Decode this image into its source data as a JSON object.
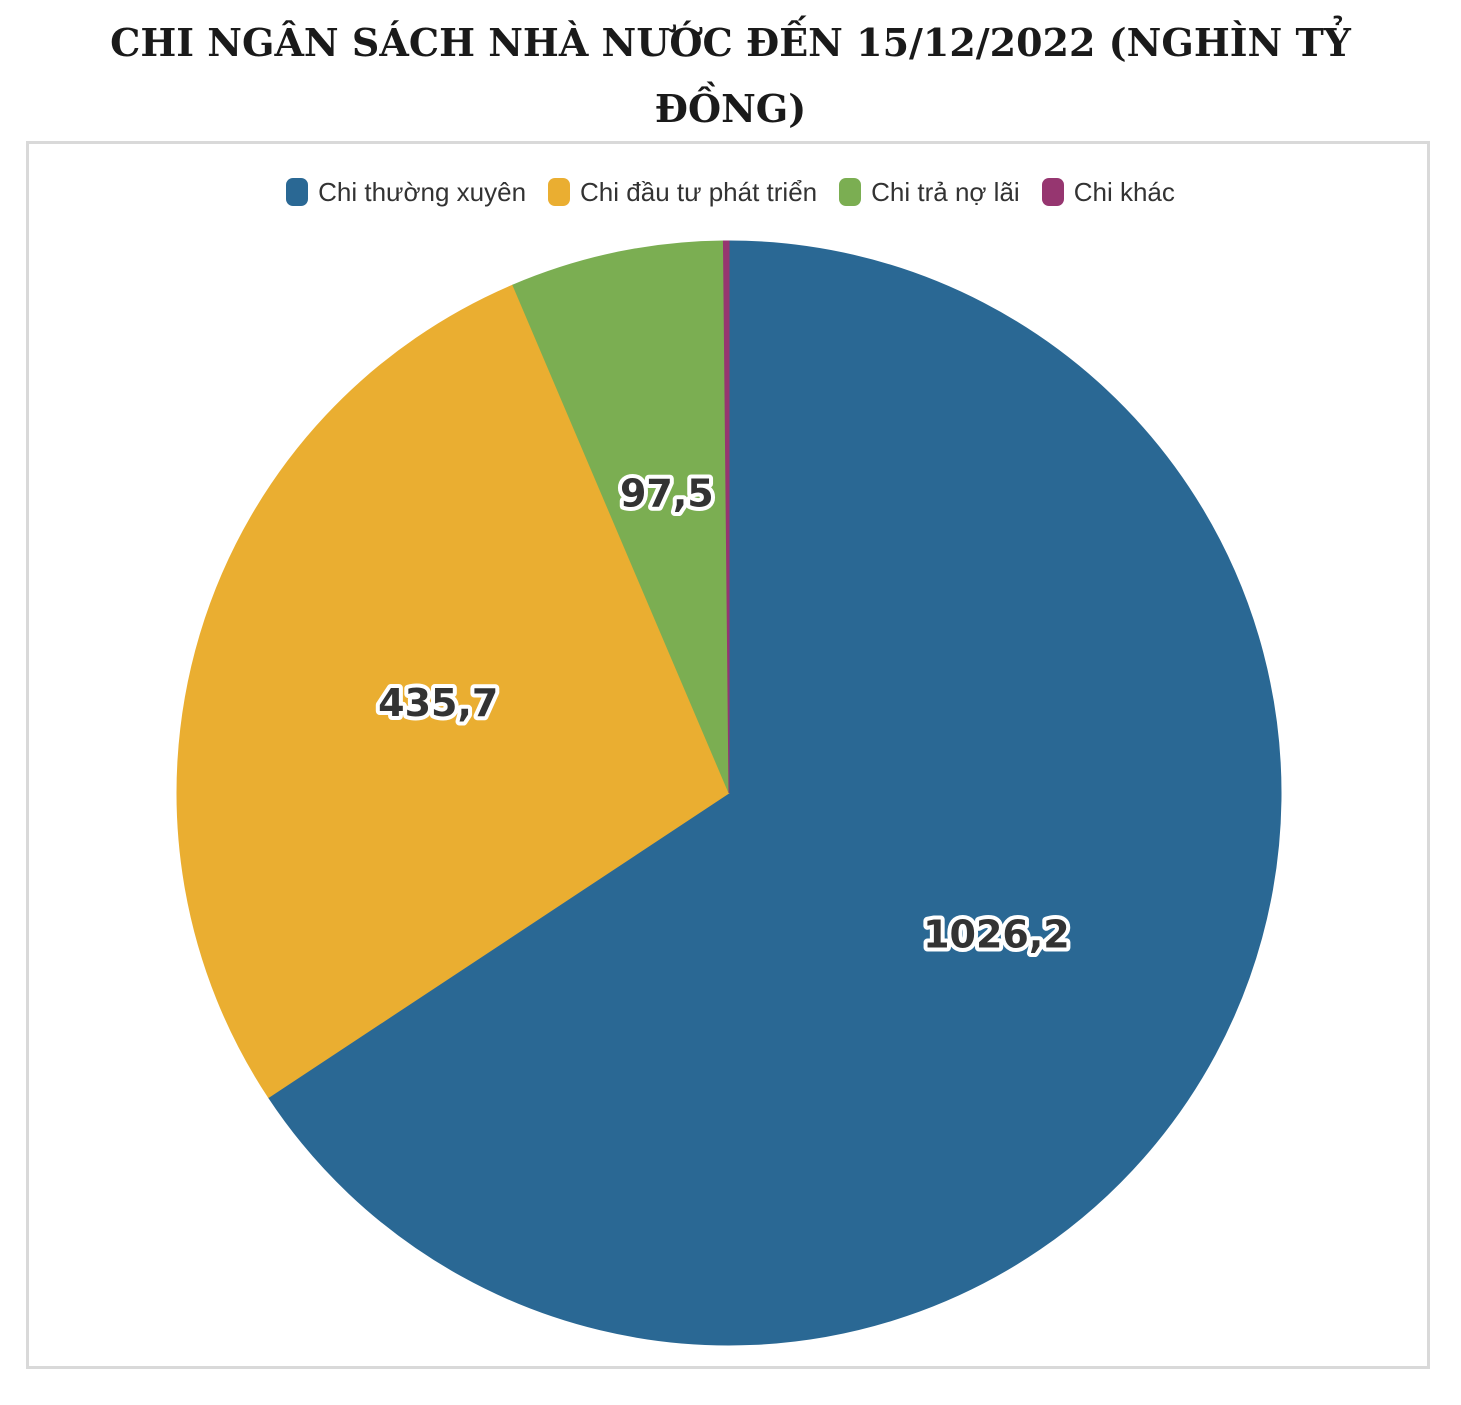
{
  "chart_data": {
    "type": "pie",
    "title_line1": "CHI NGÂN SÁCH NHÀ NƯỚC ĐẾN 15/12/2022 (NGHÌN TỶ",
    "title_line2": "ĐỒNG)",
    "legend_position": "top",
    "slices": [
      {
        "name": "Chi thường xuyên",
        "value": 1026.2,
        "label": "1026,2",
        "color": "#2a6894"
      },
      {
        "name": "Chi đầu tư phát triển",
        "value": 435.7,
        "label": "435,7",
        "color": "#eaae31"
      },
      {
        "name": "Chi trả nợ lãi",
        "value": 97.5,
        "label": "97,5",
        "color": "#7bae52"
      },
      {
        "name": "Chi khác",
        "value": 2.5,
        "label": "",
        "color": "#963670"
      }
    ]
  }
}
